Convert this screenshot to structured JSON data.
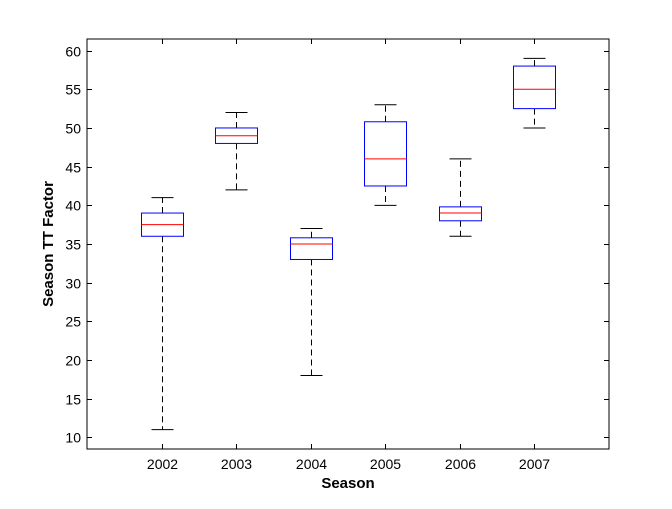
{
  "chart_data": {
    "type": "boxplot",
    "title": "",
    "xlabel": "Season",
    "ylabel": "Season TT Factor",
    "categories": [
      "2002",
      "2003",
      "2004",
      "2005",
      "2006",
      "2007"
    ],
    "boxes": [
      {
        "category": "2002",
        "whisker_low": 11,
        "q1": 36,
        "median": 37.5,
        "q3": 39,
        "whisker_high": 41
      },
      {
        "category": "2003",
        "whisker_low": 42,
        "q1": 48,
        "median": 49,
        "q3": 50,
        "whisker_high": 52
      },
      {
        "category": "2004",
        "whisker_low": 18,
        "q1": 33,
        "median": 35,
        "q3": 35.8,
        "whisker_high": 37
      },
      {
        "category": "2005",
        "whisker_low": 40,
        "q1": 42.5,
        "median": 46,
        "q3": 50.8,
        "whisker_high": 53
      },
      {
        "category": "2006",
        "whisker_low": 36,
        "q1": 38,
        "median": 39,
        "q3": 39.8,
        "whisker_high": 46
      },
      {
        "category": "2007",
        "whisker_low": 50,
        "q1": 52.5,
        "median": 55,
        "q3": 58,
        "whisker_high": 59
      }
    ],
    "ylim": [
      8.5,
      61.5
    ],
    "yticks": [
      "10",
      "15",
      "20",
      "25",
      "30",
      "35",
      "40",
      "45",
      "50",
      "55",
      "60"
    ],
    "grid": false,
    "colors": {
      "box": "#0000ff",
      "median": "#ff0000",
      "whisker": "#000000",
      "axes": "#000000"
    }
  }
}
